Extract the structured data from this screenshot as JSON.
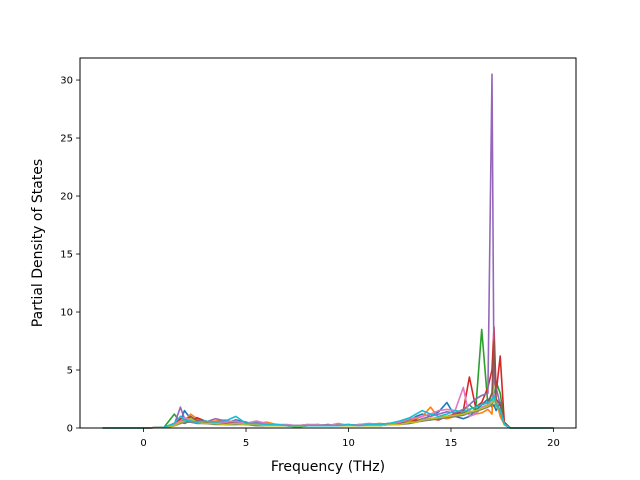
{
  "chart_data": {
    "type": "line",
    "title": "",
    "xlabel": "Frequency (THz)",
    "ylabel": "Partial Density of States",
    "xlim": [
      -3.1,
      21.1
    ],
    "ylim": [
      0,
      31.9
    ],
    "xticks": [
      0,
      5,
      10,
      15,
      20
    ],
    "xtick_labels": [
      "0",
      "5",
      "10",
      "15",
      "20"
    ],
    "yticks": [
      0,
      5,
      10,
      15,
      20,
      25,
      30
    ],
    "ytick_labels": [
      "0",
      "5",
      "10",
      "15",
      "20",
      "25",
      "30"
    ],
    "grid": false,
    "legend": "none",
    "x": [
      -2.0,
      0.0,
      1.0,
      1.5,
      1.8,
      2.0,
      2.3,
      2.6,
      3.0,
      3.5,
      4.0,
      4.5,
      5.0,
      5.5,
      6.0,
      6.5,
      7.0,
      7.5,
      8.0,
      8.5,
      9.0,
      9.5,
      10.0,
      10.5,
      11.0,
      11.5,
      12.0,
      12.5,
      13.0,
      13.3,
      13.6,
      14.0,
      14.4,
      14.8,
      15.2,
      15.6,
      15.9,
      16.2,
      16.5,
      16.8,
      17.0,
      17.1,
      17.2,
      17.4,
      17.6,
      17.9,
      18.5,
      20.0
    ],
    "series": [
      {
        "color": "#1f77b4",
        "values": [
          0,
          0,
          0.05,
          0.3,
          0.6,
          1.5,
          0.8,
          0.5,
          0.6,
          0.5,
          0.4,
          0.7,
          0.5,
          0.3,
          0.4,
          0.3,
          0.2,
          0.2,
          0.2,
          0.3,
          0.2,
          0.3,
          0.2,
          0.3,
          0.3,
          0.3,
          0.4,
          0.5,
          0.7,
          1.0,
          1.2,
          1.0,
          1.4,
          2.2,
          1.0,
          0.8,
          1.0,
          1.5,
          2.0,
          2.5,
          1.8,
          2.0,
          1.5,
          2.2,
          0.4,
          0,
          0,
          0
        ]
      },
      {
        "color": "#ff7f0e",
        "values": [
          0,
          0,
          0.05,
          0.2,
          0.4,
          0.6,
          1.2,
          0.8,
          0.5,
          0.6,
          0.7,
          0.4,
          0.3,
          0.4,
          0.5,
          0.3,
          0.2,
          0.2,
          0.3,
          0.2,
          0.2,
          0.3,
          0.3,
          0.2,
          0.3,
          0.4,
          0.3,
          0.4,
          0.6,
          0.8,
          1.0,
          1.8,
          0.9,
          0.8,
          1.0,
          1.2,
          1.5,
          1.2,
          1.3,
          1.6,
          1.2,
          5.0,
          2.5,
          1.0,
          0.3,
          0,
          0,
          0
        ]
      },
      {
        "color": "#2ca02c",
        "values": [
          0,
          0,
          0.05,
          1.2,
          0.5,
          0.4,
          0.6,
          0.5,
          0.4,
          0.5,
          0.3,
          0.3,
          0.4,
          0.3,
          0.2,
          0.3,
          0.2,
          0.1,
          0.2,
          0.2,
          0.3,
          0.2,
          0.2,
          0.2,
          0.3,
          0.2,
          0.3,
          0.4,
          0.5,
          0.6,
          0.8,
          0.7,
          0.9,
          1.0,
          1.1,
          1.5,
          2.0,
          1.5,
          8.5,
          2.0,
          3.0,
          2.5,
          4.0,
          3.0,
          0.5,
          0,
          0,
          0
        ]
      },
      {
        "color": "#d62728",
        "values": [
          0,
          0,
          0.05,
          0.4,
          0.8,
          0.6,
          0.5,
          0.9,
          0.6,
          0.4,
          0.5,
          0.4,
          0.3,
          0.3,
          0.3,
          0.2,
          0.2,
          0.2,
          0.2,
          0.2,
          0.2,
          0.2,
          0.3,
          0.2,
          0.2,
          0.3,
          0.4,
          0.4,
          0.5,
          0.7,
          0.6,
          0.8,
          0.7,
          1.0,
          1.2,
          1.5,
          4.4,
          1.8,
          2.2,
          3.5,
          5.0,
          8.7,
          3.0,
          6.2,
          0.5,
          0,
          0,
          0
        ]
      },
      {
        "color": "#9467bd",
        "values": [
          0,
          0,
          0.05,
          0.3,
          1.8,
          0.8,
          0.6,
          0.7,
          0.5,
          0.8,
          0.6,
          0.5,
          0.4,
          0.5,
          0.3,
          0.3,
          0.2,
          0.2,
          0.2,
          0.2,
          0.3,
          0.2,
          0.2,
          0.2,
          0.2,
          0.3,
          0.3,
          0.4,
          0.5,
          0.6,
          0.8,
          1.0,
          1.2,
          1.4,
          1.3,
          1.6,
          2.0,
          2.5,
          2.8,
          3.0,
          30.5,
          4.0,
          3.5,
          2.0,
          0.4,
          0,
          0,
          0
        ]
      },
      {
        "color": "#8c564b",
        "values": [
          0,
          0,
          0.05,
          0.2,
          0.5,
          0.7,
          1.0,
          0.6,
          0.5,
          0.4,
          0.4,
          0.4,
          0.3,
          0.3,
          0.3,
          0.2,
          0.2,
          0.2,
          0.2,
          0.2,
          0.2,
          0.2,
          0.2,
          0.2,
          0.2,
          0.3,
          0.3,
          0.4,
          0.5,
          0.6,
          0.7,
          0.8,
          0.9,
          1.0,
          1.1,
          1.3,
          1.6,
          1.8,
          2.0,
          2.2,
          3.0,
          7.5,
          2.5,
          2.0,
          0.4,
          0,
          0,
          0
        ]
      },
      {
        "color": "#e377c2",
        "values": [
          0,
          0,
          0.05,
          0.3,
          0.6,
          0.9,
          0.7,
          0.5,
          0.6,
          0.5,
          0.5,
          0.6,
          0.4,
          0.6,
          0.4,
          0.3,
          0.3,
          0.2,
          0.3,
          0.3,
          0.2,
          0.4,
          0.2,
          0.3,
          0.4,
          0.3,
          0.4,
          0.5,
          0.8,
          0.9,
          1.0,
          1.2,
          1.5,
          1.6,
          1.5,
          3.5,
          1.0,
          1.2,
          1.8,
          2.0,
          2.5,
          3.0,
          2.0,
          1.5,
          0.3,
          0,
          0,
          0
        ]
      },
      {
        "color": "#7f7f7f",
        "values": [
          0,
          0,
          0.05,
          0.2,
          0.4,
          0.5,
          0.5,
          0.4,
          0.4,
          0.3,
          0.3,
          0.3,
          0.3,
          0.2,
          0.2,
          0.2,
          0.2,
          0.1,
          0.2,
          0.2,
          0.2,
          0.2,
          0.2,
          0.2,
          0.2,
          0.2,
          0.3,
          0.3,
          0.4,
          0.5,
          0.6,
          0.7,
          0.8,
          0.9,
          1.0,
          1.1,
          1.3,
          1.4,
          1.6,
          1.8,
          2.0,
          2.5,
          2.0,
          1.5,
          0.3,
          0,
          0,
          0
        ]
      },
      {
        "color": "#bcbd22",
        "values": [
          0,
          0,
          0.05,
          0.2,
          0.5,
          0.6,
          0.8,
          0.5,
          0.4,
          0.4,
          0.3,
          0.4,
          0.3,
          0.3,
          0.2,
          0.2,
          0.2,
          0.1,
          0.2,
          0.2,
          0.2,
          0.2,
          0.2,
          0.2,
          0.2,
          0.2,
          0.3,
          0.3,
          0.5,
          0.5,
          0.7,
          0.8,
          0.9,
          1.0,
          1.1,
          1.2,
          1.4,
          1.5,
          1.7,
          1.9,
          2.2,
          2.6,
          1.8,
          1.6,
          0.3,
          0,
          0,
          0
        ]
      },
      {
        "color": "#17becf",
        "values": [
          0,
          0,
          0.05,
          0.4,
          1.0,
          0.7,
          0.6,
          0.5,
          0.6,
          0.5,
          0.6,
          1.0,
          0.4,
          0.4,
          0.3,
          0.3,
          0.2,
          0.2,
          0.2,
          0.2,
          0.2,
          0.2,
          0.3,
          0.2,
          0.3,
          0.3,
          0.4,
          0.6,
          0.9,
          1.2,
          1.5,
          1.2,
          1.0,
          1.2,
          1.5,
          1.4,
          1.6,
          1.8,
          2.0,
          2.2,
          2.4,
          2.8,
          2.0,
          1.6,
          0.3,
          0,
          0,
          0
        ]
      }
    ]
  }
}
